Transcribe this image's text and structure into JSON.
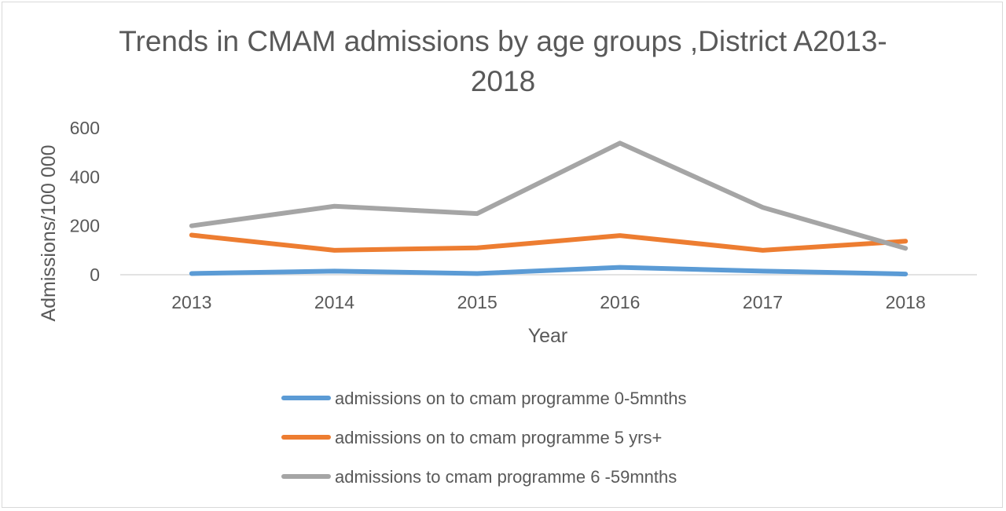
{
  "chart_data": {
    "type": "line",
    "title_lines": [
      "Trends in CMAM admissions by age groups ,District A2013-",
      "2018"
    ],
    "xlabel": "Year",
    "ylabel": "Admissions/100 000",
    "categories": [
      "2013",
      "2014",
      "2015",
      "2016",
      "2017",
      "2018"
    ],
    "ylim": [
      0,
      600
    ],
    "yticks": [
      "0",
      "200",
      "400",
      "600"
    ],
    "grid": false,
    "legend_position": "bottom",
    "series": [
      {
        "name": "admissions on to cmam programme 0-5mnths",
        "color": "#5b9bd5",
        "values": [
          5,
          15,
          5,
          30,
          15,
          3
        ]
      },
      {
        "name": "admissions on to cmam programme 5 yrs+",
        "color": "#ed7d31",
        "values": [
          162,
          100,
          110,
          160,
          100,
          137
        ]
      },
      {
        "name": "admissions to cmam programme 6 -59mnths",
        "color": "#a5a5a5",
        "values": [
          200,
          280,
          250,
          538,
          275,
          108
        ]
      }
    ]
  }
}
